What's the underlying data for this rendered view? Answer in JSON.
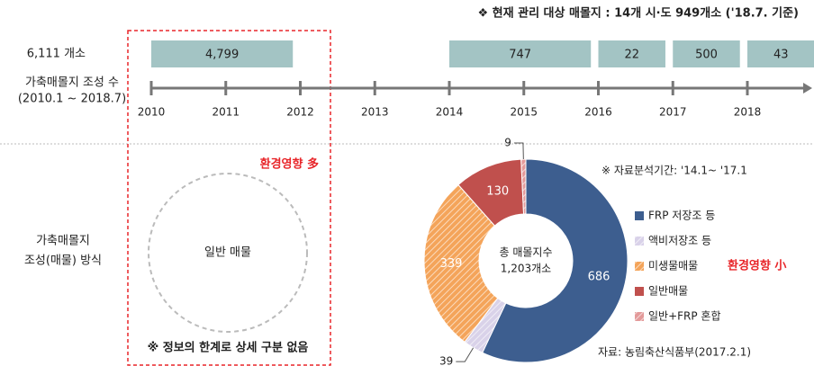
{
  "header_note": "❖ 현재 관리 대상 매몰지 : 14개 시·도 949개소 ('18.7. 기준)",
  "left_labels": {
    "total": "6,111 개소",
    "count_line1": "가축매몰지 조성 수",
    "count_line2": "(2010.1 ~ 2018.7)",
    "method_line1": "가축매몰지",
    "method_line2": "조성(매물) 방식"
  },
  "left_panel": {
    "impact": "환경영향 多",
    "circle_label": "일반 매물",
    "note": "※ 정보의 한계로 상세 구분 없음"
  },
  "chart_data": [
    {
      "type": "timeline",
      "xlim": [
        2010,
        2018
      ],
      "xticks": [
        2010,
        2011,
        2012,
        2013,
        2014,
        2015,
        2016,
        2017,
        2018
      ],
      "values": [
        4799,
        747,
        22,
        500,
        43
      ],
      "value_labels": [
        "4,799",
        "747",
        "22",
        "500",
        "43"
      ],
      "from": [
        2010,
        2014,
        2016,
        2017,
        2018
      ],
      "to": [
        2012,
        2016,
        2017,
        2018,
        2019
      ],
      "color": "#a3c4c4"
    },
    {
      "type": "pie",
      "center_line1": "총 매몰지수",
      "center_line2": "1,203개소",
      "categories": [
        "FRP 저장조 등",
        "액비저장조 등",
        "미생물매물",
        "일반매물",
        "일반+FRP 혼합"
      ],
      "values": [
        686,
        39,
        339,
        130,
        9
      ],
      "colors": [
        "#3d5e8f",
        "#d9d2e9",
        "#f4a45a",
        "#c0504d",
        "#e39a9a"
      ],
      "hatched": [
        false,
        true,
        true,
        false,
        true
      ],
      "period_note": "※ 자료분석기간: '14.1~ '17.1",
      "impact": "환경영향 小",
      "source": "자료: 농림축산식품부(2017.2.1)"
    }
  ]
}
